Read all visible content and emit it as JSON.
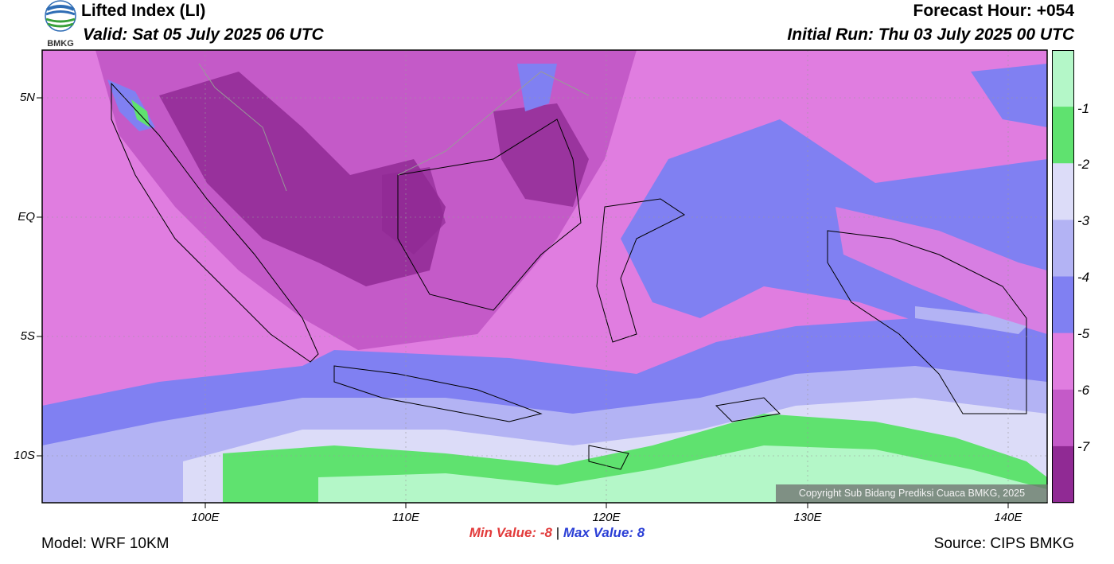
{
  "header": {
    "title": "Lifted Index (LI)",
    "valid": "Valid: Sat 05 July 2025 06 UTC",
    "forecast_hour": "Forecast Hour: +054",
    "initial_run": "Initial Run: Thu 03 July 2025 00 UTC",
    "logo_text": "BMKG"
  },
  "map": {
    "lat_labels": [
      "5N",
      "EQ",
      "5S",
      "10S"
    ],
    "lon_labels": [
      "100E",
      "110E",
      "120E",
      "130E",
      "140E"
    ],
    "copyright": "Copyright Sub Bidang Prediksi Cuaca BMKG, 2025"
  },
  "colorbar": {
    "tick_labels": [
      "-1",
      "-2",
      "-3",
      "-4",
      "-5",
      "-6",
      "-7"
    ],
    "colors": [
      "#b4f7c8",
      "#5fe26f",
      "#dcdcf8",
      "#b3b3f4",
      "#8080f2",
      "#e07de0",
      "#c45ac8",
      "#902a94"
    ]
  },
  "stats": {
    "min_label": "Min Value:",
    "min_value": "-8",
    "separator": "|",
    "max_label": "Max Value:",
    "max_value": "8"
  },
  "footer": {
    "model": "Model: WRF 10KM",
    "source": "Source: CIPS BMKG"
  },
  "palette": {
    "li_minus_8": "#902a94",
    "li_minus_7": "#c45ac8",
    "li_minus_6": "#e07de0",
    "li_minus_5": "#8080f2",
    "li_minus_4": "#b3b3f4",
    "li_minus_3": "#dcdcf8",
    "li_minus_2": "#5fe26f",
    "li_minus_1": "#b4f7c8"
  }
}
